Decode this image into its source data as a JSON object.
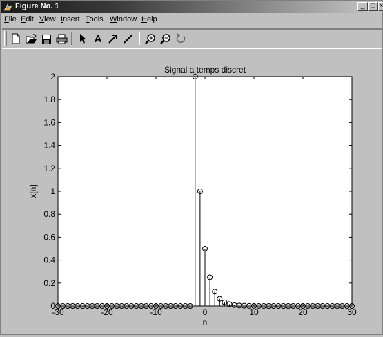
{
  "window": {
    "title": "Figure No. 1",
    "controls": {
      "minimize": "_",
      "maximize": "□",
      "close": "×"
    }
  },
  "menu": {
    "items": [
      {
        "label": "File",
        "ul": "F",
        "rest": "ile"
      },
      {
        "label": "Edit",
        "ul": "E",
        "rest": "dit"
      },
      {
        "label": "View",
        "ul": "V",
        "rest": "iew"
      },
      {
        "label": "Insert",
        "ul": "I",
        "rest": "nsert"
      },
      {
        "label": "Tools",
        "ul": "T",
        "rest": "ools"
      },
      {
        "label": "Window",
        "ul": "W",
        "rest": "indow"
      },
      {
        "label": "Help",
        "ul": "H",
        "rest": "elp"
      }
    ]
  },
  "toolbar": {
    "icons": [
      "new-file-icon",
      "open-folder-icon",
      "save-icon",
      "print-icon",
      "select-arrow-icon",
      "insert-text-icon",
      "insert-arrow-icon",
      "insert-line-icon",
      "zoom-in-icon",
      "zoom-out-icon",
      "rotate-icon"
    ],
    "text_tool_glyph": "A"
  },
  "chart_data": {
    "type": "stem",
    "title": "Signal a temps discret",
    "xlabel": "n",
    "ylabel": "x[n]",
    "xlim": [
      -30,
      30
    ],
    "ylim": [
      0,
      2
    ],
    "xticks": [
      "-30",
      "-20",
      "-10",
      "0",
      "10",
      "20",
      "30"
    ],
    "yticks": [
      "0",
      "0.2",
      "0.4",
      "0.6",
      "0.8",
      "1",
      "1.2",
      "1.4",
      "1.6",
      "1.8",
      "2"
    ],
    "x": [
      -30,
      -29,
      -28,
      -27,
      -26,
      -25,
      -24,
      -23,
      -22,
      -21,
      -20,
      -19,
      -18,
      -17,
      -16,
      -15,
      -14,
      -13,
      -12,
      -11,
      -10,
      -9,
      -8,
      -7,
      -6,
      -5,
      -4,
      -3,
      -2,
      -1,
      0,
      1,
      2,
      3,
      4,
      5,
      6,
      7,
      8,
      9,
      10,
      11,
      12,
      13,
      14,
      15,
      16,
      17,
      18,
      19,
      20,
      21,
      22,
      23,
      24,
      25,
      26,
      27,
      28,
      29,
      30
    ],
    "y": [
      0,
      0,
      0,
      0,
      0,
      0,
      0,
      0,
      0,
      0,
      0,
      0,
      0,
      0,
      0,
      0,
      0,
      0,
      0,
      0,
      0,
      0,
      0,
      0,
      0,
      0,
      0,
      0,
      2,
      1,
      0.5,
      0.25,
      0.125,
      0.0625,
      0.03125,
      0.015625,
      0.0078125,
      0.00390625,
      0.001953125,
      0.0009765625,
      0.00048828125,
      0.000244140625,
      0.0001220703125,
      6.103515625e-05,
      3.0517578125e-05,
      1.52587890625e-05,
      0,
      0,
      0,
      0,
      0,
      0,
      0,
      0,
      0,
      0,
      0,
      0,
      0,
      0,
      0
    ],
    "grid": false,
    "marker": "circle",
    "colors": {
      "plot_bg": "#ffffff",
      "figure_bg": "#c0c0c0",
      "stem": "#000000"
    }
  }
}
